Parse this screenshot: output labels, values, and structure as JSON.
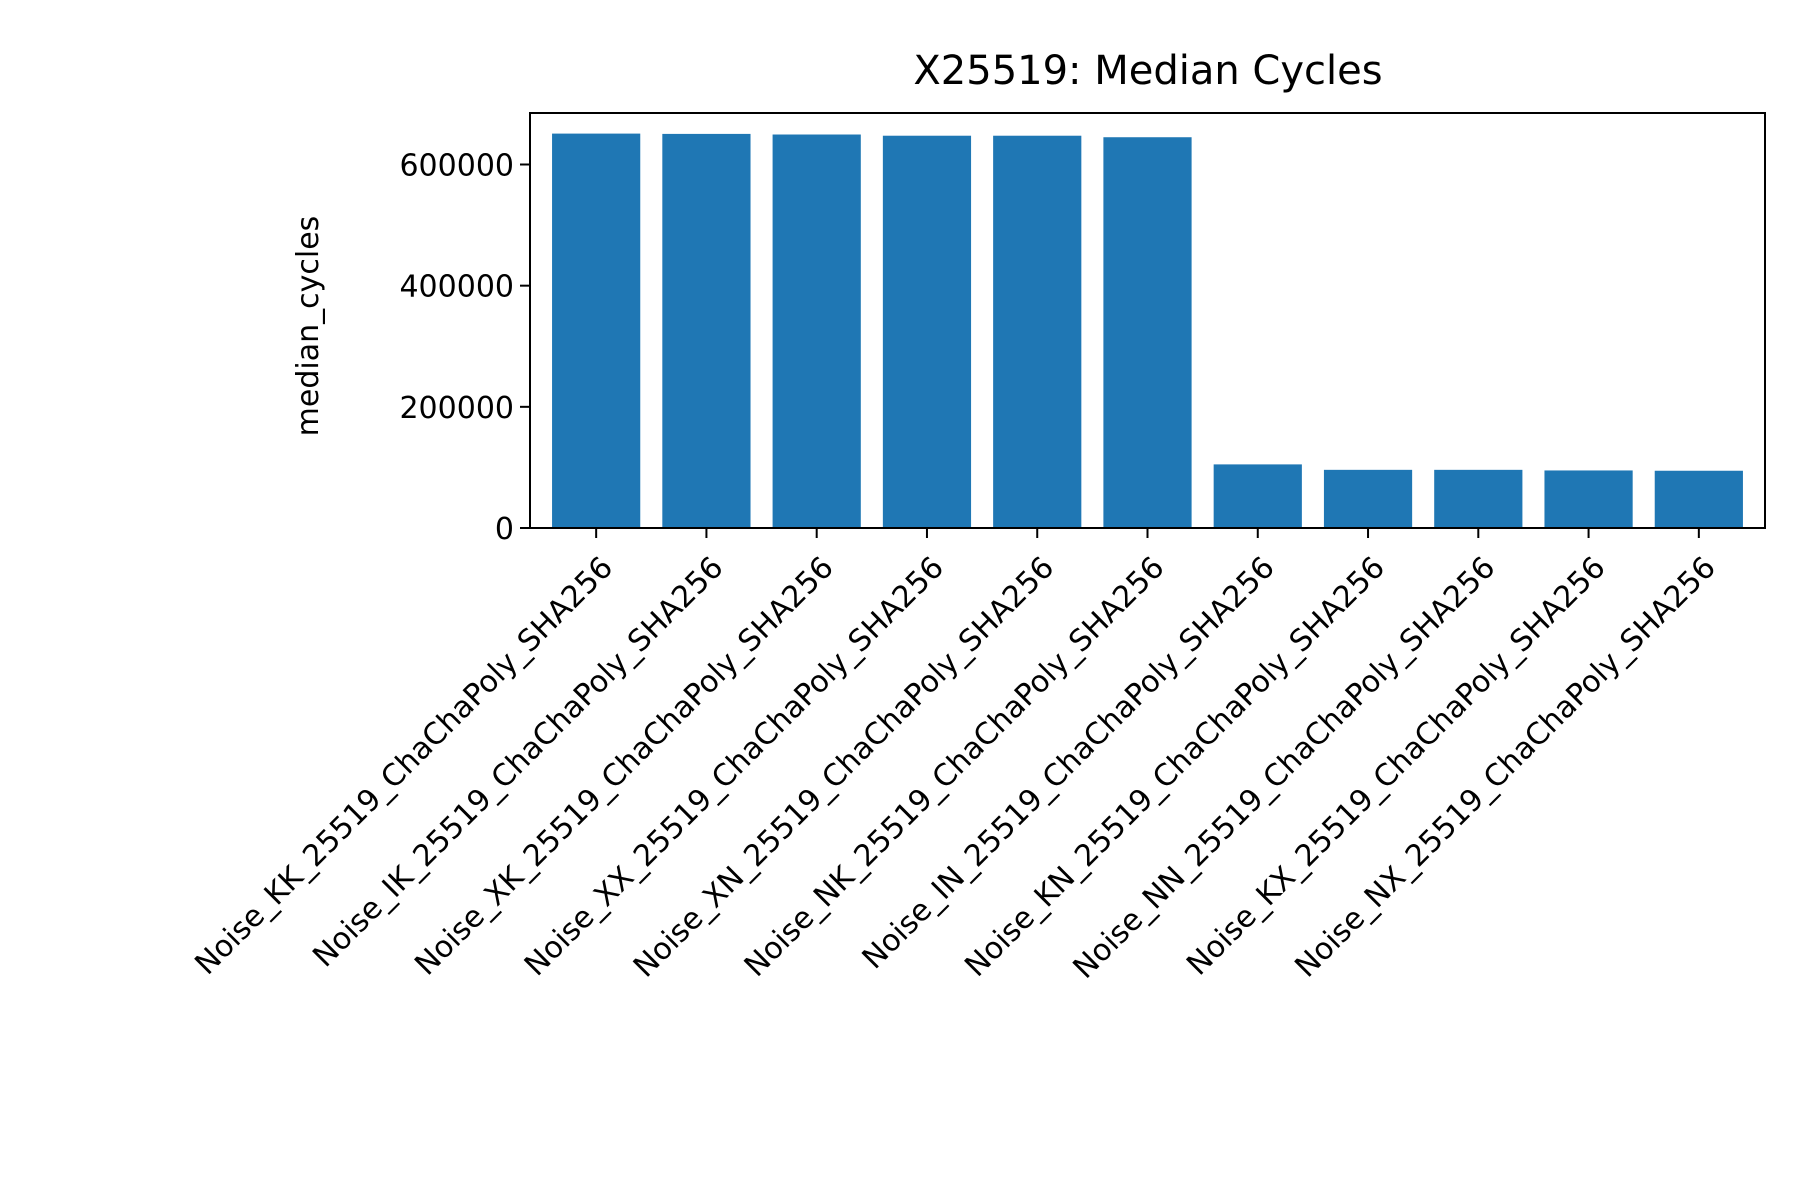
{
  "chart_data": {
    "type": "bar",
    "title": "X25519: Median Cycles",
    "xlabel": "",
    "ylabel": "median_cycles",
    "categories": [
      "Noise_KK_25519_ChaChaPoly_SHA256",
      "Noise_IK_25519_ChaChaPoly_SHA256",
      "Noise_XK_25519_ChaChaPoly_SHA256",
      "Noise_XX_25519_ChaChaPoly_SHA256",
      "Noise_XN_25519_ChaChaPoly_SHA256",
      "Noise_NK_25519_ChaChaPoly_SHA256",
      "Noise_IN_25519_ChaChaPoly_SHA256",
      "Noise_KN_25519_ChaChaPoly_SHA256",
      "Noise_NN_25519_ChaChaPoly_SHA256",
      "Noise_KX_25519_ChaChaPoly_SHA256",
      "Noise_NX_25519_ChaChaPoly_SHA256"
    ],
    "values": [
      651000,
      650500,
      649500,
      647500,
      647500,
      645000,
      105000,
      96000,
      96000,
      95000,
      94500
    ],
    "ylim": [
      0,
      685000
    ],
    "yticks": [
      0,
      200000,
      400000,
      600000
    ],
    "ytick_labels": [
      "0",
      "200000",
      "400000",
      "600000"
    ],
    "grid": false,
    "bar_color": "#1f77b4"
  }
}
